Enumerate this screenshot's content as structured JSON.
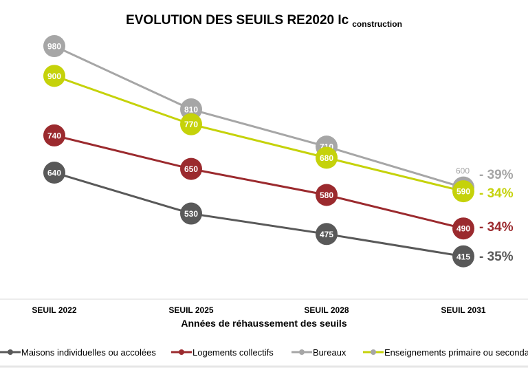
{
  "chart_data": {
    "type": "line",
    "title": "EVOLUTION DES SEUILS RE2020 Ic",
    "title_subscript": "construction",
    "xlabel": "Années de réhaussement des seuils",
    "ylabel": "",
    "categories": [
      "SEUIL 2022",
      "SEUIL 2025",
      "SEUIL 2028",
      "SEUIL 2031"
    ],
    "ylim": [
      300,
      1030
    ],
    "grid": false,
    "legend_position": "bottom",
    "series": [
      {
        "name": "Maisons individuelles ou accolées",
        "values": [
          640,
          530,
          475,
          415
        ],
        "color": "#595959",
        "change": "- 35%"
      },
      {
        "name": "Logements collectifs",
        "values": [
          740,
          650,
          580,
          490
        ],
        "color": "#9b2a2e",
        "change": "- 34%"
      },
      {
        "name": "Bureaux",
        "values": [
          980,
          810,
          710,
          600
        ],
        "color": "#a6a6a6",
        "change": "- 39%"
      },
      {
        "name": "Enseignements primaire ou secondaire",
        "values": [
          900,
          770,
          680,
          590
        ],
        "color": "#c5d20a",
        "change": "- 34%"
      }
    ]
  }
}
